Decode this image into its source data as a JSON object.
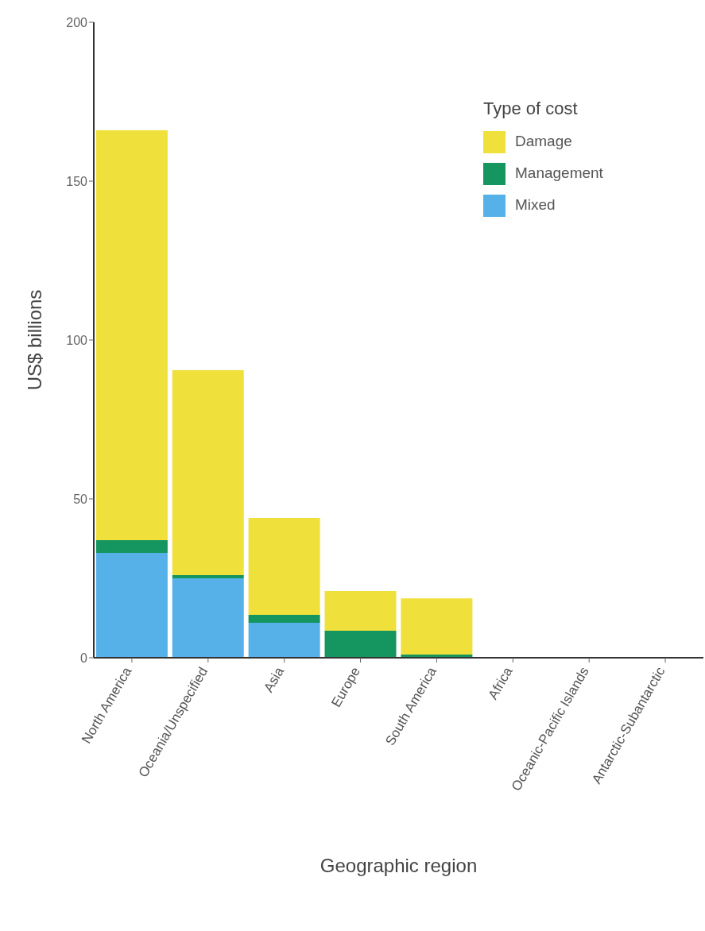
{
  "chart_data": {
    "type": "bar",
    "stacked": true,
    "xlabel": "Geographic region",
    "ylabel": "US$ billions",
    "legend_title": "Type of cost",
    "legend": "top right",
    "categories": [
      "North America",
      "Oceania/Unspecified",
      "Asia",
      "Europe",
      "South America",
      "Africa",
      "Oceanic-Pacific Islands",
      "Antarctic-Subantarctic"
    ],
    "series": [
      {
        "name": "Mixed",
        "color": "#56b1e8",
        "values": [
          33,
          25,
          11,
          0,
          0,
          0,
          0,
          0
        ]
      },
      {
        "name": "Management",
        "color": "#15955f",
        "values": [
          4,
          1,
          2.5,
          8.5,
          1,
          0,
          0,
          0
        ]
      },
      {
        "name": "Damage",
        "color": "#f0e03c",
        "values": [
          129,
          64.5,
          30.5,
          12.5,
          17.7,
          null,
          null,
          null
        ]
      }
    ],
    "ylim": [
      0,
      200
    ],
    "yticks": [
      0,
      50,
      100,
      150,
      200
    ],
    "grid": false
  }
}
